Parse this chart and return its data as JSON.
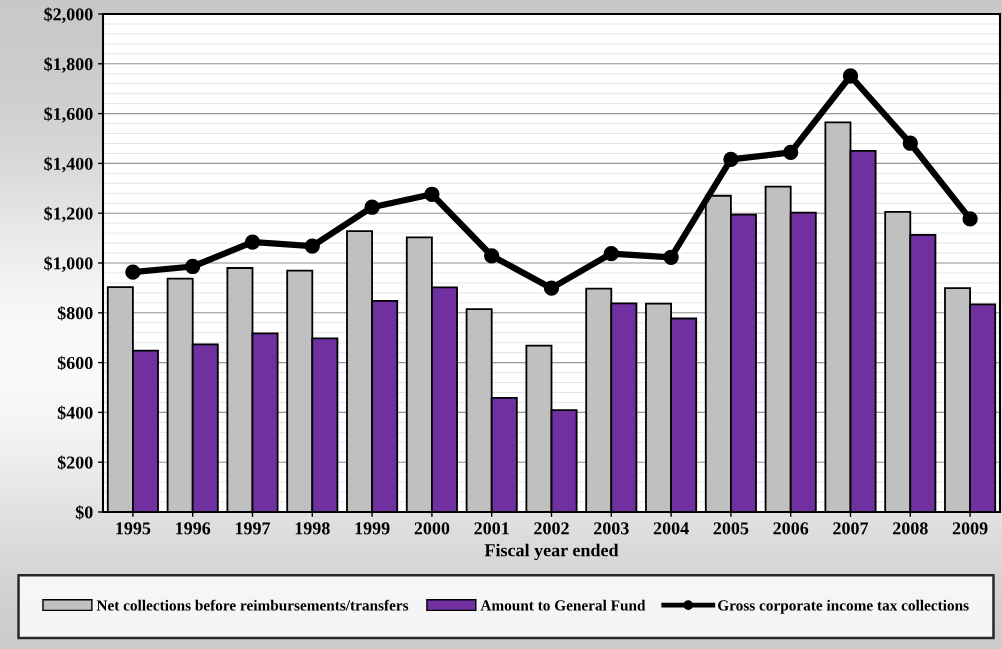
{
  "chart_data": {
    "type": "bar",
    "xlabel": "Fiscal year ended",
    "categories": [
      "1995",
      "1996",
      "1997",
      "1998",
      "1999",
      "2000",
      "2001",
      "2002",
      "2003",
      "2004",
      "2005",
      "2006",
      "2007",
      "2008",
      "2009"
    ],
    "series": [
      {
        "name": "Net collections before reimbursements/transfers",
        "color": "#c0c0c0",
        "values": [
          903,
          937,
          980,
          969,
          1128,
          1103,
          815,
          668,
          897,
          837,
          1270,
          1307,
          1565,
          1205,
          899
        ]
      },
      {
        "name": "Amount to General Fund",
        "color": "#7030a0",
        "values": [
          648,
          673,
          717,
          697,
          848,
          902,
          458,
          409,
          838,
          777,
          1194,
          1202,
          1450,
          1113,
          834
        ]
      },
      {
        "name": "Gross corporate income tax collections",
        "type": "line",
        "color": "#000000",
        "marker": "circle",
        "values": [
          963,
          986,
          1084,
          1068,
          1224,
          1276,
          1029,
          899,
          1038,
          1023,
          1416,
          1444,
          1751,
          1481,
          1177
        ]
      }
    ],
    "ylim": [
      0,
      2000
    ],
    "yticks": [
      {
        "value": 0,
        "label": "$0"
      },
      {
        "value": 200,
        "label": "$200"
      },
      {
        "value": 400,
        "label": "$400"
      },
      {
        "value": 600,
        "label": "$600"
      },
      {
        "value": 800,
        "label": "$800"
      },
      {
        "value": 1000,
        "label": "$1,000"
      },
      {
        "value": 1200,
        "label": "$1,200"
      },
      {
        "value": 1400,
        "label": "$1,400"
      },
      {
        "value": 1600,
        "label": "$1,600"
      },
      {
        "value": 1800,
        "label": "$1,800"
      },
      {
        "value": 2000,
        "label": "$2,000"
      }
    ],
    "grid": "y",
    "legend": "bottom"
  }
}
